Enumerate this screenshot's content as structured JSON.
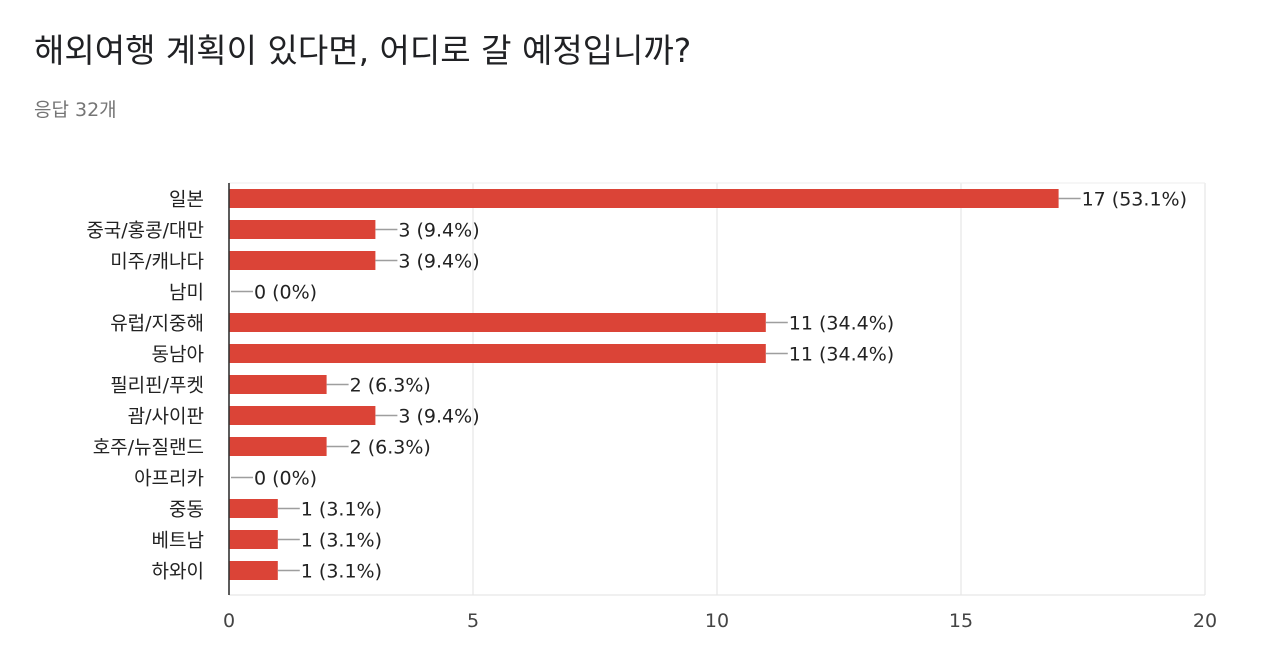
{
  "header": {
    "title": "해외여행 계획이 있다면, 어디로 갈 예정입니까?",
    "subtitle": "응답 32개"
  },
  "chart_data": {
    "type": "bar",
    "orientation": "horizontal",
    "categories": [
      "일본",
      "중국/홍콩/대만",
      "미주/캐나다",
      "남미",
      "유럽/지중해",
      "동남아",
      "필리핀/푸켓",
      "괌/사이판",
      "호주/뉴질랜드",
      "아프리카",
      "중동",
      "베트남",
      "하와이"
    ],
    "values": [
      17,
      3,
      3,
      0,
      11,
      11,
      2,
      3,
      2,
      0,
      1,
      1,
      1
    ],
    "data_labels": [
      "17 (53.1%)",
      "3 (9.4%)",
      "3 (9.4%)",
      "0 (0%)",
      "11 (34.4%)",
      "11 (34.4%)",
      "2 (6.3%)",
      "3 (9.4%)",
      "2 (6.3%)",
      "0 (0%)",
      "1 (3.1%)",
      "1 (3.1%)",
      "1 (3.1%)"
    ],
    "xlim": [
      0,
      20
    ],
    "xticks": [
      0,
      5,
      10,
      15,
      20
    ],
    "grid": true,
    "bar_color": "#db4437"
  }
}
